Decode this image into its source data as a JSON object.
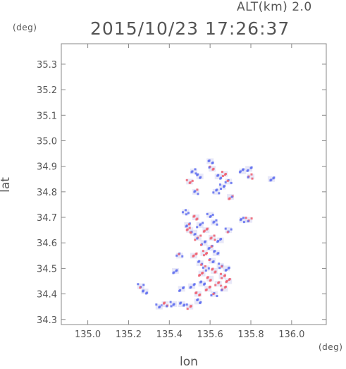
{
  "header": {
    "altitude_label": "ALT(km) 2.0",
    "timestamp": "2015/10/23 17:26:37"
  },
  "units": {
    "y_unit": "(deg)",
    "x_unit": "(deg)"
  },
  "axes": {
    "xlabel": "lon",
    "ylabel": "lat"
  },
  "chart_data": {
    "type": "heatmap",
    "title": "2015/10/23 17:26:37",
    "subtitle": "ALT(km) 2.0",
    "xlabel": "lon",
    "ylabel": "lat",
    "xlim": [
      134.87,
      136.17
    ],
    "ylim": [
      34.28,
      35.38
    ],
    "x_ticks": [
      "135.0",
      "135.2",
      "135.4",
      "135.6",
      "135.8",
      "136.0"
    ],
    "y_ticks": [
      "34.3",
      "34.4",
      "34.5",
      "34.6",
      "34.7",
      "34.8",
      "34.9",
      "35.0",
      "35.1",
      "35.2",
      "35.3"
    ],
    "colors": {
      "positive": "#f06070",
      "negative": "#6070f0",
      "faint": "#d8d8f4"
    },
    "cells": [
      {
        "lon": 135.26,
        "lat": 34.43,
        "sign": -1
      },
      {
        "lon": 135.28,
        "lat": 34.41,
        "sign": -1
      },
      {
        "lon": 135.35,
        "lat": 34.35,
        "sign": -1
      },
      {
        "lon": 135.38,
        "lat": 34.36,
        "sign": 1
      },
      {
        "lon": 135.42,
        "lat": 34.36,
        "sign": -1
      },
      {
        "lon": 135.46,
        "lat": 34.36,
        "sign": -1
      },
      {
        "lon": 135.5,
        "lat": 34.35,
        "sign": 1
      },
      {
        "lon": 135.54,
        "lat": 34.37,
        "sign": -1
      },
      {
        "lon": 135.43,
        "lat": 34.49,
        "sign": -1
      },
      {
        "lon": 135.45,
        "lat": 34.55,
        "sign": -1
      },
      {
        "lon": 135.46,
        "lat": 34.42,
        "sign": -1
      },
      {
        "lon": 135.48,
        "lat": 34.72,
        "sign": -1
      },
      {
        "lon": 135.49,
        "lat": 34.67,
        "sign": -1
      },
      {
        "lon": 135.5,
        "lat": 34.65,
        "sign": 1
      },
      {
        "lon": 135.51,
        "lat": 34.43,
        "sign": -1
      },
      {
        "lon": 135.52,
        "lat": 34.64,
        "sign": -1
      },
      {
        "lon": 135.52,
        "lat": 34.55,
        "sign": 1
      },
      {
        "lon": 135.53,
        "lat": 34.7,
        "sign": 1
      },
      {
        "lon": 135.54,
        "lat": 34.62,
        "sign": 1
      },
      {
        "lon": 135.54,
        "lat": 34.4,
        "sign": 1
      },
      {
        "lon": 135.55,
        "lat": 34.67,
        "sign": -1
      },
      {
        "lon": 135.55,
        "lat": 34.52,
        "sign": -1
      },
      {
        "lon": 135.56,
        "lat": 34.48,
        "sign": 1
      },
      {
        "lon": 135.56,
        "lat": 34.44,
        "sign": -1
      },
      {
        "lon": 135.57,
        "lat": 34.6,
        "sign": -1
      },
      {
        "lon": 135.57,
        "lat": 34.56,
        "sign": 1
      },
      {
        "lon": 135.58,
        "lat": 34.65,
        "sign": 1
      },
      {
        "lon": 135.58,
        "lat": 34.5,
        "sign": -1
      },
      {
        "lon": 135.59,
        "lat": 34.42,
        "sign": 1
      },
      {
        "lon": 135.6,
        "lat": 34.71,
        "sign": -1
      },
      {
        "lon": 135.6,
        "lat": 34.58,
        "sign": -1
      },
      {
        "lon": 135.6,
        "lat": 34.46,
        "sign": 1
      },
      {
        "lon": 135.61,
        "lat": 34.62,
        "sign": 1
      },
      {
        "lon": 135.61,
        "lat": 34.53,
        "sign": -1
      },
      {
        "lon": 135.62,
        "lat": 34.68,
        "sign": -1
      },
      {
        "lon": 135.62,
        "lat": 34.49,
        "sign": 1
      },
      {
        "lon": 135.62,
        "lat": 34.4,
        "sign": -1
      },
      {
        "lon": 135.63,
        "lat": 34.56,
        "sign": -1
      },
      {
        "lon": 135.64,
        "lat": 34.44,
        "sign": 1
      },
      {
        "lon": 135.65,
        "lat": 34.51,
        "sign": -1
      },
      {
        "lon": 135.65,
        "lat": 34.61,
        "sign": -1
      },
      {
        "lon": 135.66,
        "lat": 34.47,
        "sign": 1
      },
      {
        "lon": 135.67,
        "lat": 34.42,
        "sign": 1
      },
      {
        "lon": 135.68,
        "lat": 34.5,
        "sign": -1
      },
      {
        "lon": 135.69,
        "lat": 34.45,
        "sign": 1
      },
      {
        "lon": 135.69,
        "lat": 34.65,
        "sign": -1
      },
      {
        "lon": 135.52,
        "lat": 34.88,
        "sign": -1
      },
      {
        "lon": 135.5,
        "lat": 34.84,
        "sign": 1
      },
      {
        "lon": 135.53,
        "lat": 34.8,
        "sign": -1
      },
      {
        "lon": 135.55,
        "lat": 34.86,
        "sign": -1
      },
      {
        "lon": 135.6,
        "lat": 34.92,
        "sign": -1
      },
      {
        "lon": 135.61,
        "lat": 34.89,
        "sign": 1
      },
      {
        "lon": 135.64,
        "lat": 34.86,
        "sign": -1
      },
      {
        "lon": 135.67,
        "lat": 34.87,
        "sign": 1
      },
      {
        "lon": 135.69,
        "lat": 34.84,
        "sign": -1
      },
      {
        "lon": 135.66,
        "lat": 34.82,
        "sign": -1
      },
      {
        "lon": 135.63,
        "lat": 34.8,
        "sign": -1
      },
      {
        "lon": 135.7,
        "lat": 34.78,
        "sign": 1
      },
      {
        "lon": 135.76,
        "lat": 34.88,
        "sign": -1
      },
      {
        "lon": 135.79,
        "lat": 34.89,
        "sign": -1
      },
      {
        "lon": 135.8,
        "lat": 34.86,
        "sign": 1
      },
      {
        "lon": 135.9,
        "lat": 34.85,
        "sign": -1
      },
      {
        "lon": 135.76,
        "lat": 34.69,
        "sign": -1
      },
      {
        "lon": 135.79,
        "lat": 34.69,
        "sign": 1
      }
    ]
  }
}
